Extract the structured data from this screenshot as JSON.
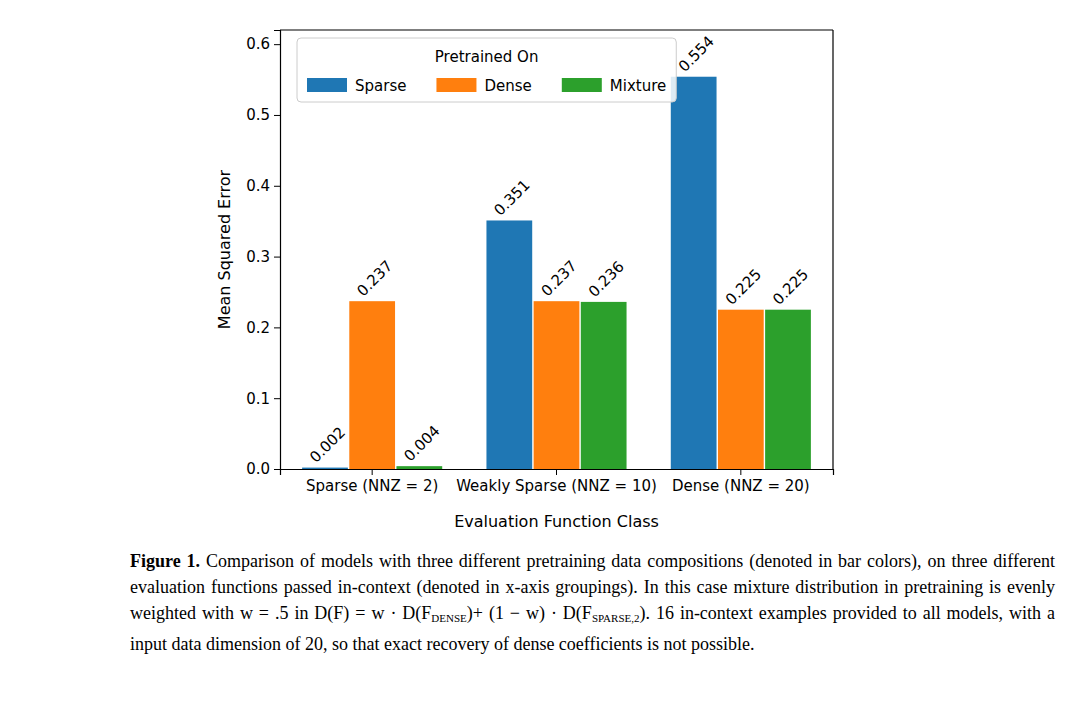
{
  "chart_data": {
    "type": "bar",
    "categories": [
      "Sparse (NNZ = 2)",
      "Weakly Sparse (NNZ = 10)",
      "Dense (NNZ = 20)"
    ],
    "series": [
      {
        "name": "Sparse",
        "color": "#1f77b4",
        "values": [
          0.002,
          0.351,
          0.554
        ]
      },
      {
        "name": "Dense",
        "color": "#ff7f0e",
        "values": [
          0.237,
          0.237,
          0.225
        ]
      },
      {
        "name": "Mixture",
        "color": "#2ca02c",
        "values": [
          0.004,
          0.236,
          0.225
        ]
      }
    ],
    "x_label": "Evaluation Function Class",
    "y_label": "Mean Squared Error",
    "ylim": [
      0,
      0.62
    ],
    "yticks": [
      {
        "value": 0,
        "label": "0.0"
      },
      {
        "value": 0.1,
        "label": "0.1"
      },
      {
        "value": 0.2,
        "label": "0.2"
      },
      {
        "value": 0.3,
        "label": "0.3"
      },
      {
        "value": 0.4,
        "label": "0.4"
      },
      {
        "value": 0.5,
        "label": "0.5"
      },
      {
        "value": 0.6,
        "label": "0.6"
      }
    ],
    "grid": false,
    "legend": "upper left",
    "legend_title": "Pretrained On",
    "data_labels": true
  },
  "caption": {
    "label": "Figure 1.",
    "parts": [
      "Comparison of models with three different pretraining data compositions (denoted in bar colors), on three different evaluation functions passed in-context (denoted in x-axis groupings). In this case mixture distribution in pretraining is evenly weighted with w = .5 in D(F) = w · D(F",
      {
        "sub": "DENSE"
      },
      ")+ (1 − w) · D(F",
      {
        "sub": "SPARSE,2"
      },
      "). 16 in-context examples provided to all models, with a input data dimension of 20, so that exact recovery of dense coefficients is not possible."
    ]
  }
}
